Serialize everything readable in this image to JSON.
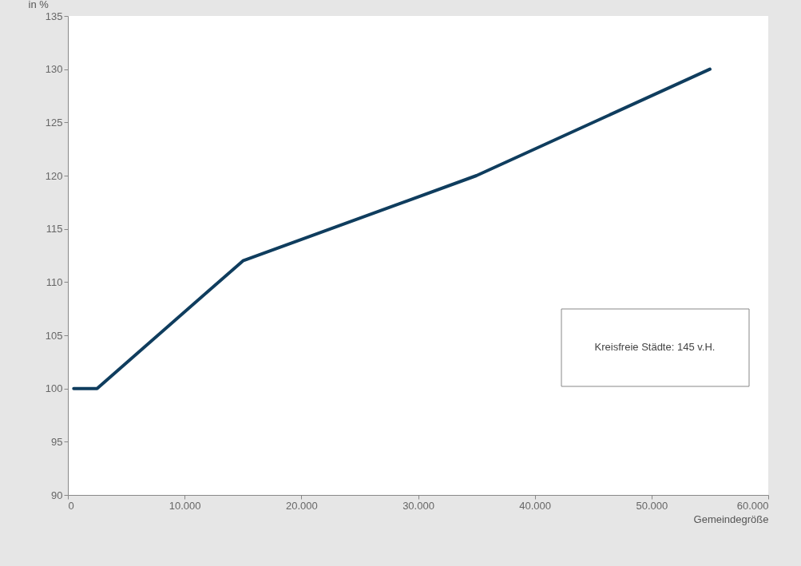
{
  "chart_data": {
    "type": "line",
    "ylabel": "in %",
    "xlabel": "Gemeindegröße",
    "x": [
      500,
      2500,
      15000,
      35000,
      55000
    ],
    "series": [
      {
        "color": "#0f3d5e",
        "values": [
          100,
          100,
          112,
          120,
          130
        ]
      }
    ],
    "xlim": [
      0,
      60000
    ],
    "xticks": [
      0,
      {
        "value": 10000,
        "label": "10.000"
      },
      {
        "value": 20000,
        "label": "20.000"
      },
      {
        "value": 30000,
        "label": "30.000"
      },
      {
        "value": 40000,
        "label": "40.000"
      },
      {
        "value": 50000,
        "label": "50.000"
      },
      {
        "value": 60000,
        "label": "60.000"
      }
    ],
    "ylim": [
      90,
      135
    ],
    "yticks": [
      90,
      95,
      100,
      105,
      110,
      115,
      120,
      125,
      130,
      135
    ],
    "grid": false,
    "marker": "none",
    "line_style": "solid",
    "annotations": [
      "Kreisfreie Städte: 145 v.H."
    ]
  }
}
